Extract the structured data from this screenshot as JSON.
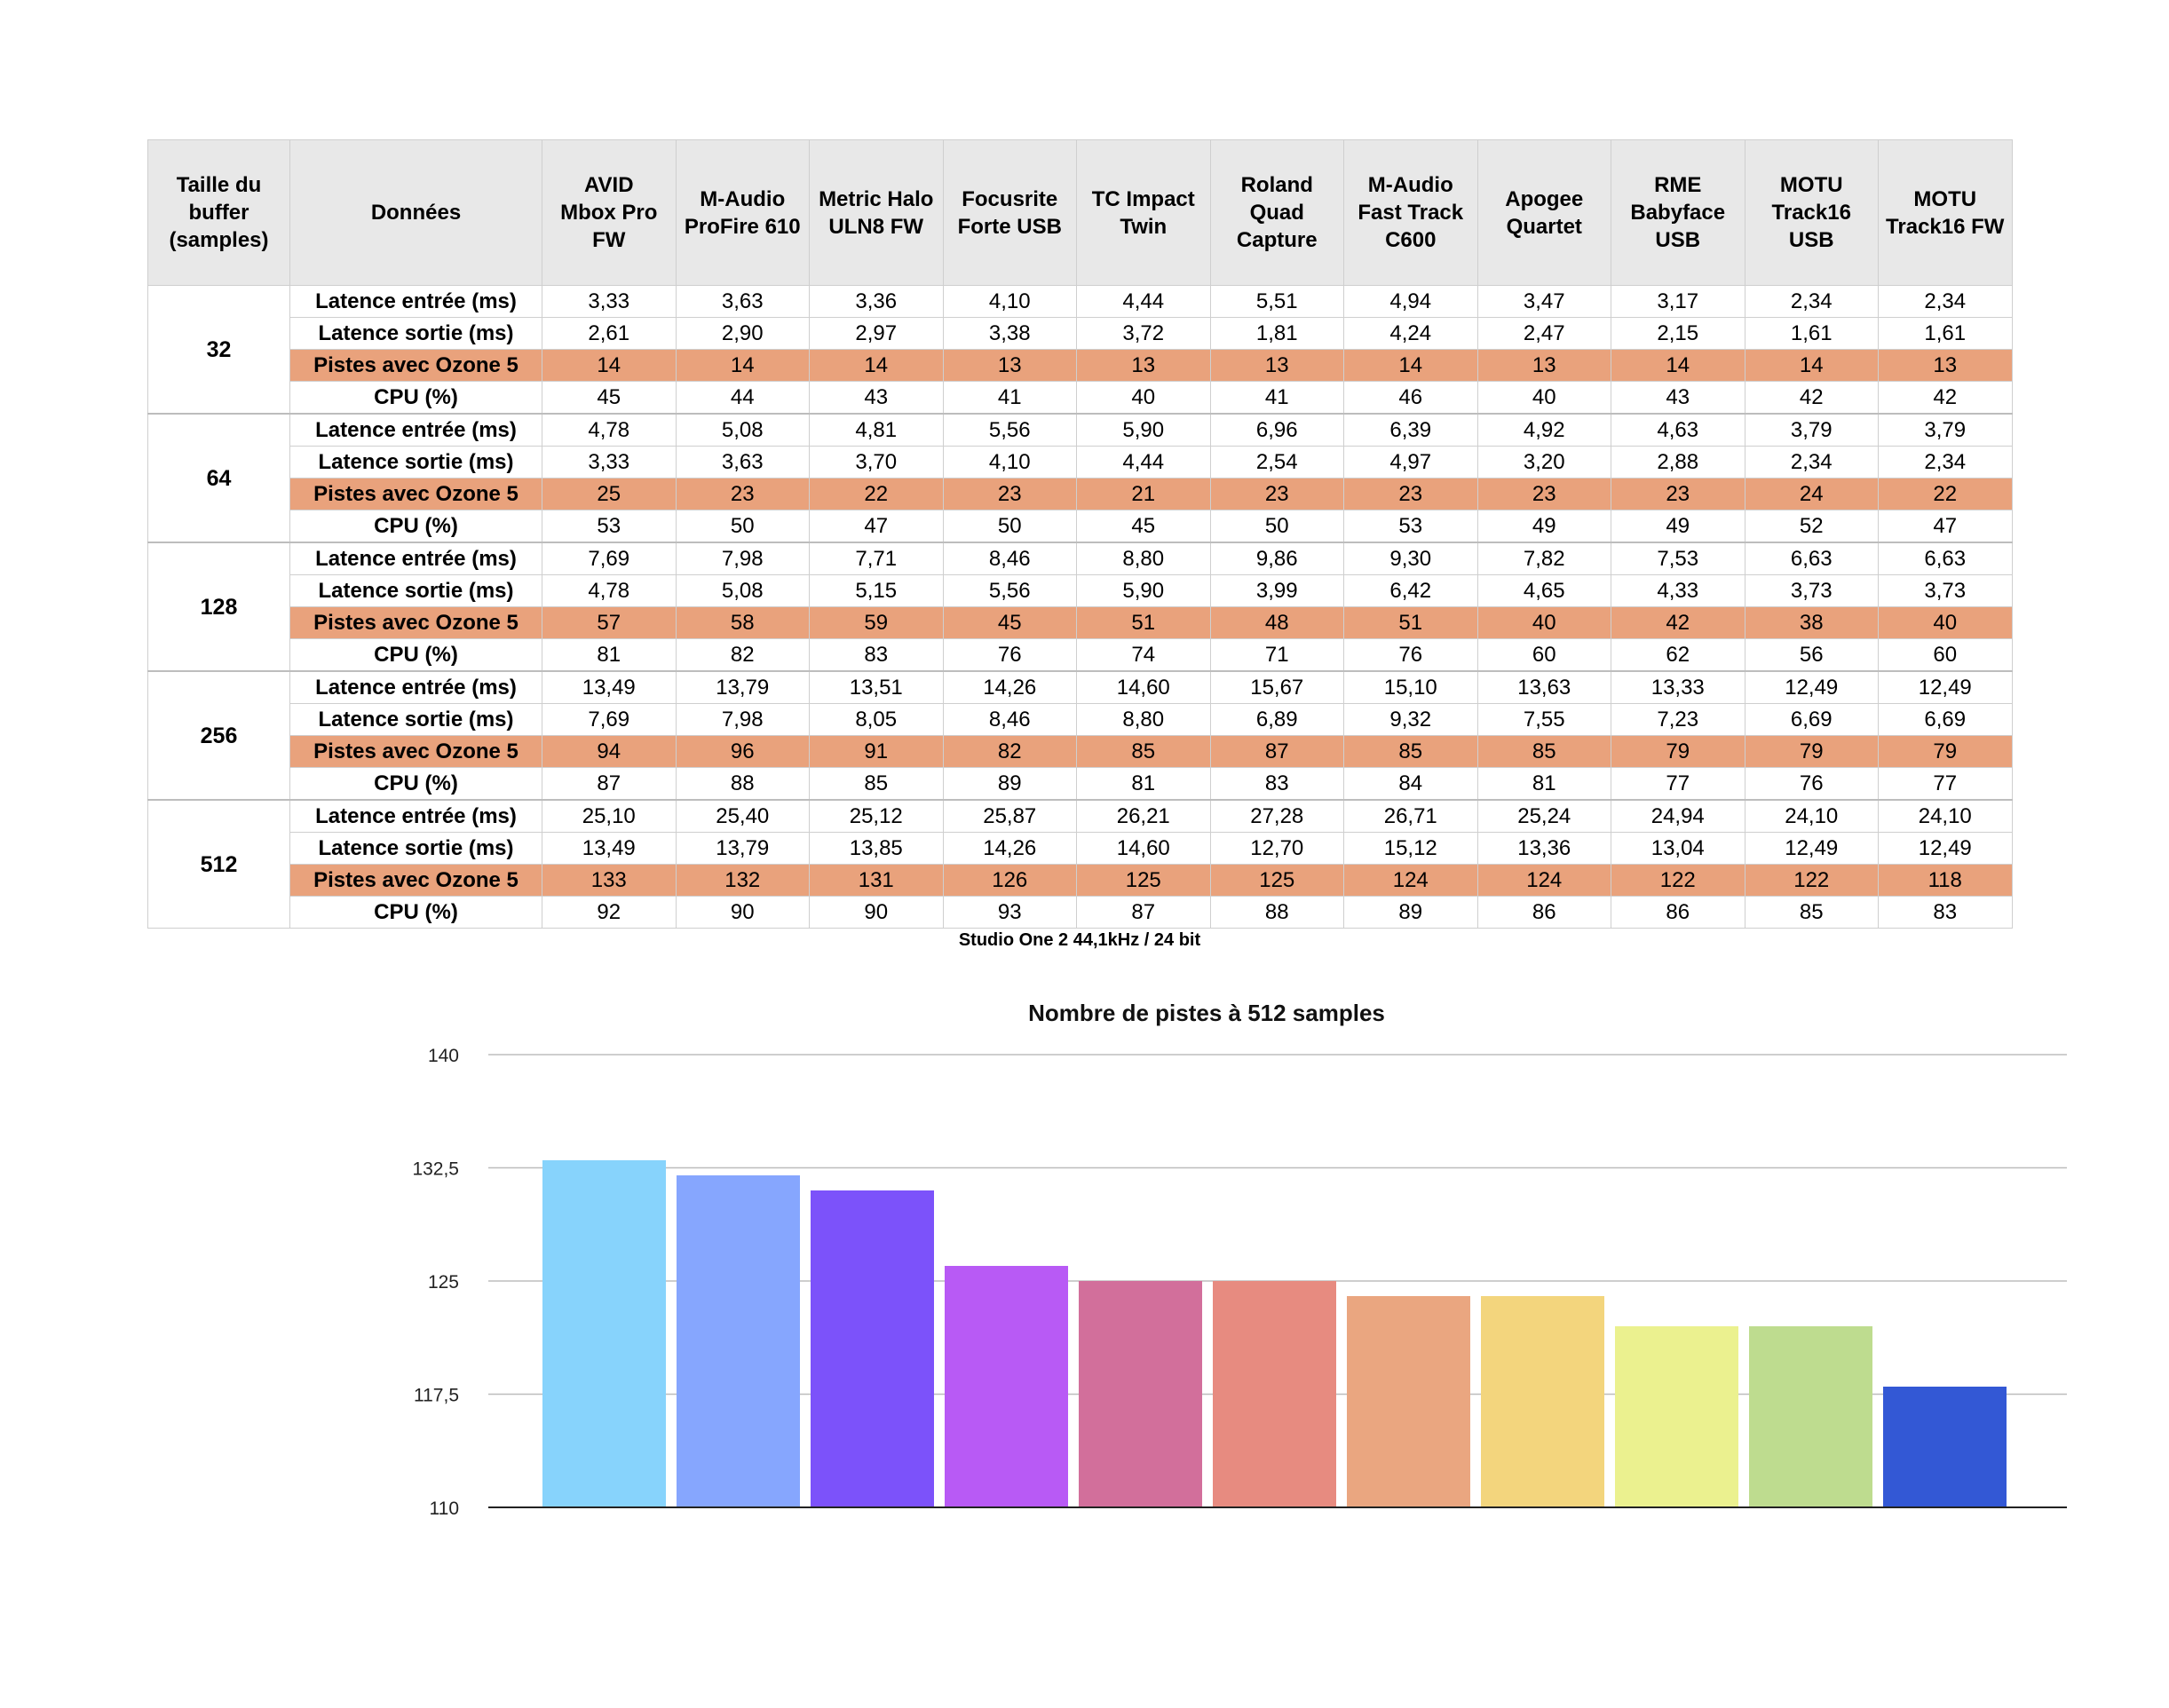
{
  "table": {
    "header": {
      "buffer": "Taille du\nbuffer\n(samples)",
      "data": "Données"
    },
    "devices": [
      "AVID\nMbox Pro\nFW",
      "M-Audio\nProFire 610",
      "Metric Halo\nULN8 FW",
      "Focusrite\nForte USB",
      "TC Impact\nTwin",
      "Roland\nQuad\nCapture",
      "M-Audio\nFast Track\nC600",
      "Apogee\nQuartet",
      "RME\nBabyface\nUSB",
      "MOTU\nTrack16\nUSB",
      "MOTU\nTrack16 FW"
    ],
    "metrics": [
      "Latence entrée (ms)",
      "Latence sortie (ms)",
      "Pistes avec Ozone 5",
      "CPU (%)"
    ],
    "highlight_color": "#e9a27c",
    "groups": [
      {
        "buffer": "32",
        "rows": [
          [
            "3,33",
            "3,63",
            "3,36",
            "4,10",
            "4,44",
            "5,51",
            "4,94",
            "3,47",
            "3,17",
            "2,34",
            "2,34"
          ],
          [
            "2,61",
            "2,90",
            "2,97",
            "3,38",
            "3,72",
            "1,81",
            "4,24",
            "2,47",
            "2,15",
            "1,61",
            "1,61"
          ],
          [
            "14",
            "14",
            "14",
            "13",
            "13",
            "13",
            "14",
            "13",
            "14",
            "14",
            "13"
          ],
          [
            "45",
            "44",
            "43",
            "41",
            "40",
            "41",
            "46",
            "40",
            "43",
            "42",
            "42"
          ]
        ]
      },
      {
        "buffer": "64",
        "rows": [
          [
            "4,78",
            "5,08",
            "4,81",
            "5,56",
            "5,90",
            "6,96",
            "6,39",
            "4,92",
            "4,63",
            "3,79",
            "3,79"
          ],
          [
            "3,33",
            "3,63",
            "3,70",
            "4,10",
            "4,44",
            "2,54",
            "4,97",
            "3,20",
            "2,88",
            "2,34",
            "2,34"
          ],
          [
            "25",
            "23",
            "22",
            "23",
            "21",
            "23",
            "23",
            "23",
            "23",
            "24",
            "22"
          ],
          [
            "53",
            "50",
            "47",
            "50",
            "45",
            "50",
            "53",
            "49",
            "49",
            "52",
            "47"
          ]
        ]
      },
      {
        "buffer": "128",
        "rows": [
          [
            "7,69",
            "7,98",
            "7,71",
            "8,46",
            "8,80",
            "9,86",
            "9,30",
            "7,82",
            "7,53",
            "6,63",
            "6,63"
          ],
          [
            "4,78",
            "5,08",
            "5,15",
            "5,56",
            "5,90",
            "3,99",
            "6,42",
            "4,65",
            "4,33",
            "3,73",
            "3,73"
          ],
          [
            "57",
            "58",
            "59",
            "45",
            "51",
            "48",
            "51",
            "40",
            "42",
            "38",
            "40"
          ],
          [
            "81",
            "82",
            "83",
            "76",
            "74",
            "71",
            "76",
            "60",
            "62",
            "56",
            "60"
          ]
        ]
      },
      {
        "buffer": "256",
        "rows": [
          [
            "13,49",
            "13,79",
            "13,51",
            "14,26",
            "14,60",
            "15,67",
            "15,10",
            "13,63",
            "13,33",
            "12,49",
            "12,49"
          ],
          [
            "7,69",
            "7,98",
            "8,05",
            "8,46",
            "8,80",
            "6,89",
            "9,32",
            "7,55",
            "7,23",
            "6,69",
            "6,69"
          ],
          [
            "94",
            "96",
            "91",
            "82",
            "85",
            "87",
            "85",
            "85",
            "79",
            "79",
            "79"
          ],
          [
            "87",
            "88",
            "85",
            "89",
            "81",
            "83",
            "84",
            "81",
            "77",
            "76",
            "77"
          ]
        ]
      },
      {
        "buffer": "512",
        "rows": [
          [
            "25,10",
            "25,40",
            "25,12",
            "25,87",
            "26,21",
            "27,28",
            "26,71",
            "25,24",
            "24,94",
            "24,10",
            "24,10"
          ],
          [
            "13,49",
            "13,79",
            "13,85",
            "14,26",
            "14,60",
            "12,70",
            "15,12",
            "13,36",
            "13,04",
            "12,49",
            "12,49"
          ],
          [
            "133",
            "132",
            "131",
            "126",
            "125",
            "125",
            "124",
            "124",
            "122",
            "122",
            "118"
          ],
          [
            "92",
            "90",
            "90",
            "93",
            "87",
            "88",
            "89",
            "86",
            "86",
            "85",
            "83"
          ]
        ]
      }
    ]
  },
  "caption": "Studio One 2 44,1kHz / 24 bit",
  "chart_data": {
    "type": "bar",
    "title": "Nombre de pistes à 512 samples",
    "xlabel": "",
    "ylabel": "",
    "ylim": [
      110,
      140
    ],
    "yticks": [
      "110",
      "117,5",
      "125",
      "132,5",
      "140"
    ],
    "ytick_values": [
      110,
      117.5,
      125,
      132.5,
      140
    ],
    "grid": true,
    "categories": [
      "AVID Mbox Pro FW",
      "M-Audio ProFire 610",
      "Metric Halo ULN8 FW",
      "Focusrite Forte USB",
      "TC Impact Twin",
      "Roland Quad Capture",
      "M-Audio Fast Track C600",
      "Apogee Quartet",
      "RME Babyface USB",
      "MOTU Track16 USB",
      "MOTU Track16 FW"
    ],
    "values": [
      133,
      132,
      131,
      126,
      125,
      125,
      124,
      124,
      122,
      122,
      118
    ],
    "colors": [
      "#87d3fc",
      "#86a6fe",
      "#7c52fa",
      "#b85af5",
      "#d26f9b",
      "#e78b80",
      "#eaa680",
      "#f3d57d",
      "#ebf18f",
      "#bedc8f",
      "#3358d5"
    ]
  }
}
